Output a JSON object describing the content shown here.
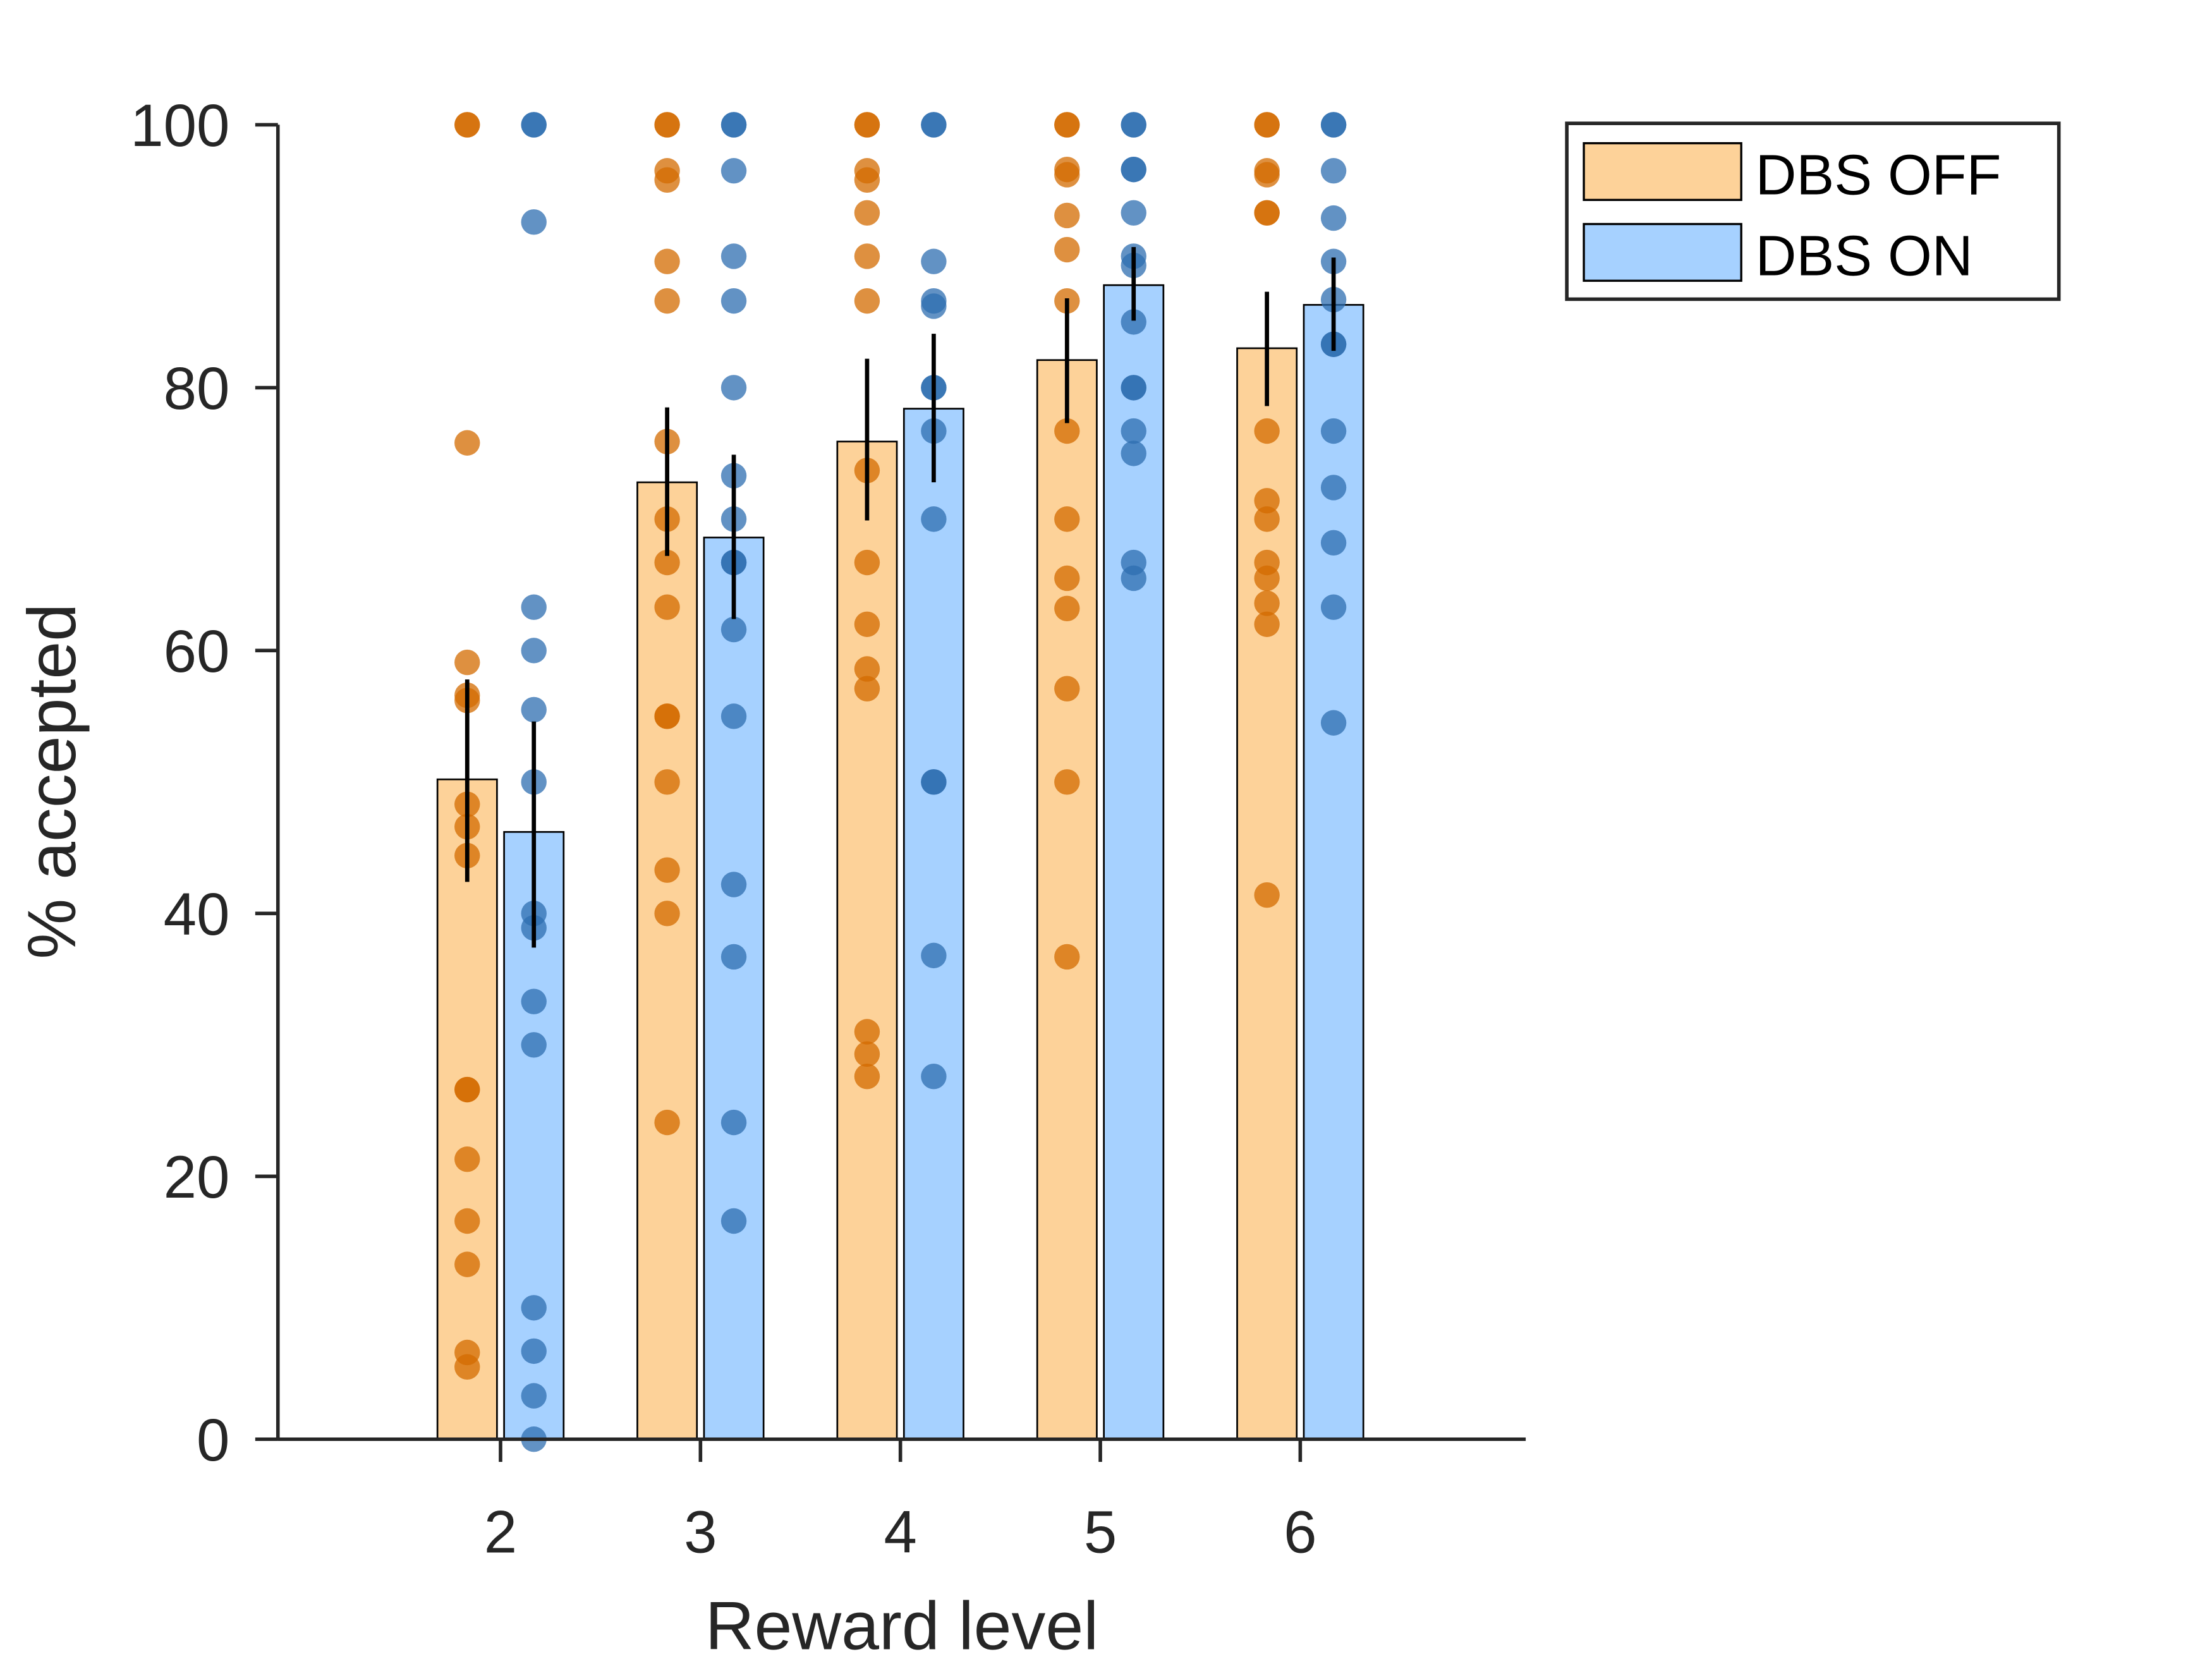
{
  "chart_data": {
    "type": "bar",
    "title": "",
    "xlabel": "Reward level",
    "ylabel": "% accepted",
    "categories": [
      "2",
      "3",
      "4",
      "5",
      "6"
    ],
    "ylim": [
      0,
      100
    ],
    "yticks": [
      "0",
      "20",
      "40",
      "60",
      "80",
      "100"
    ],
    "grid": false,
    "legend_position": "top-right outside",
    "series": [
      {
        "name": "DBS OFF",
        "bar_color": "#FDD299",
        "dot_color": "#D36B00",
        "values": [
          50.2,
          72.8,
          75.9,
          82.1,
          83.0
        ],
        "error_low": [
          42.4,
          67.2,
          69.9,
          77.3,
          78.6
        ],
        "error_high": [
          57.8,
          78.5,
          82.2,
          86.8,
          87.3
        ],
        "points": [
          [
            100,
            100,
            75.8,
            59.1,
            56.6,
            56.2,
            48.3,
            46.6,
            44.4,
            26.6,
            26.6,
            21.3,
            16.6,
            13.3,
            6.6,
            5.5
          ],
          [
            100,
            100,
            96.5,
            95.8,
            89.6,
            86.6,
            75.9,
            70,
            66.7,
            63.3,
            55,
            55,
            50,
            43.3,
            40,
            24.1
          ],
          [
            100,
            100,
            96.5,
            95.8,
            93.3,
            90,
            86.6,
            73.7,
            66.7,
            62,
            58.6,
            57.1,
            31,
            29.3,
            27.6
          ],
          [
            100,
            100,
            96.6,
            96.2,
            93.1,
            90.5,
            86.6,
            76.7,
            70,
            65.5,
            63.2,
            57.1,
            50,
            36.7
          ],
          [
            100,
            100,
            96.5,
            96.2,
            93.3,
            93.3,
            76.7,
            71.4,
            70,
            66.7,
            65.5,
            63.6,
            62,
            41.4
          ]
        ]
      },
      {
        "name": "DBS ON",
        "bar_color": "#A6D1FF",
        "dot_color": "#2E6DB0",
        "values": [
          46.2,
          68.6,
          78.4,
          87.8,
          86.3
        ],
        "error_low": [
          37.4,
          62.4,
          72.8,
          85.1,
          82.8
        ],
        "error_high": [
          54.6,
          74.9,
          84.1,
          90.7,
          89.9
        ],
        "points": [
          [
            100,
            100,
            92.6,
            63.3,
            60,
            55.5,
            50,
            40,
            38.9,
            33.3,
            30,
            10,
            6.7,
            3.3,
            0
          ],
          [
            100,
            100,
            96.5,
            90,
            86.6,
            80,
            73.3,
            70,
            66.7,
            66.7,
            61.6,
            55,
            42.2,
            36.7,
            24.1,
            16.6
          ],
          [
            100,
            100,
            89.6,
            86.6,
            86.2,
            80,
            80,
            76.7,
            70,
            50,
            50,
            36.8,
            27.6
          ],
          [
            100,
            100,
            96.6,
            96.6,
            93.3,
            90,
            89.3,
            85,
            80,
            80,
            76.7,
            75,
            66.7,
            65.5
          ],
          [
            100,
            100,
            96.5,
            92.9,
            89.6,
            86.7,
            83.3,
            83.3,
            76.7,
            72.4,
            68.2,
            63.3,
            54.5
          ]
        ]
      }
    ]
  }
}
